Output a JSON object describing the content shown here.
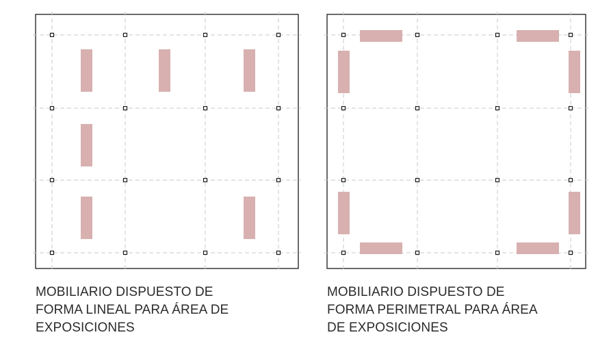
{
  "diagrams": [
    {
      "id": "linear",
      "caption_lines": [
        "MOBILIARIO DISPUESTO DE",
        "FORMA LINEAL PARA ÁREA DE",
        "EXPOSICIONES"
      ]
    },
    {
      "id": "perimeter",
      "caption_lines": [
        "MOBILIARIO DISPUESTO DE",
        "FORMA PERIMETRAL PARA ÁREA",
        "DE EXPOSICIONES"
      ]
    }
  ],
  "colors": {
    "frame": "#1a1a1a",
    "grid_line": "#c8c8c8",
    "column": "#1a1a1a",
    "furniture": "#d8b0b0"
  }
}
